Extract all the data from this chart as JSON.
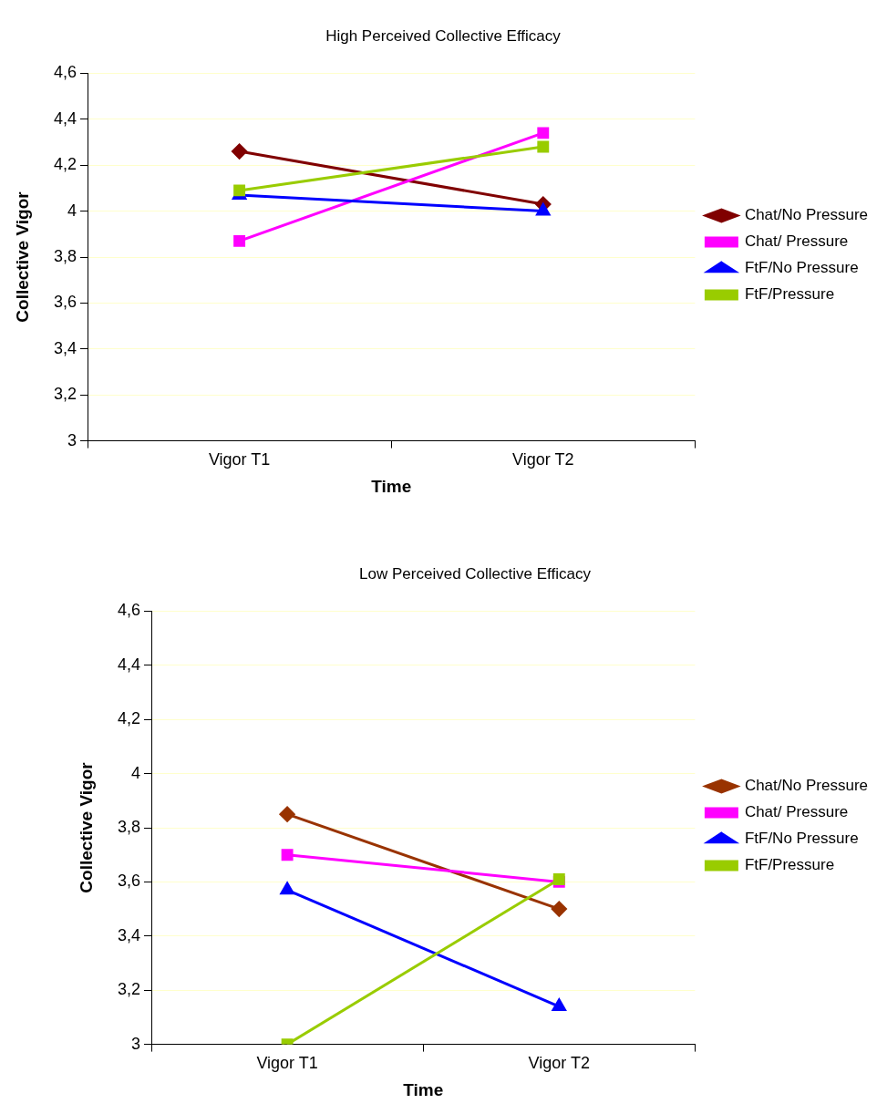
{
  "chart_data": [
    {
      "type": "line",
      "title": "High Perceived Collective Efficacy",
      "xlabel": "Time",
      "ylabel": "Collective Vigor",
      "categories": [
        "Vigor T1",
        "Vigor T2"
      ],
      "series": [
        {
          "name": "Chat/No Pressure",
          "color": "#800000",
          "marker": "diamond",
          "values": [
            4.26,
            4.03
          ]
        },
        {
          "name": "Chat/ Pressure",
          "color": "#ff00ff",
          "marker": "square",
          "values": [
            3.87,
            4.34
          ]
        },
        {
          "name": "FtF/No Pressure",
          "color": "#0000ff",
          "marker": "triangle",
          "values": [
            4.07,
            4.0
          ]
        },
        {
          "name": "FtF/Pressure",
          "color": "#99cc00",
          "marker": "square",
          "values": [
            4.09,
            4.28
          ]
        }
      ],
      "ylim": [
        3,
        4.6
      ],
      "yticks": [
        {
          "value": 3,
          "label": "3"
        },
        {
          "value": 3.2,
          "label": "3,2"
        },
        {
          "value": 3.4,
          "label": "3,4"
        },
        {
          "value": 3.6,
          "label": "3,6"
        },
        {
          "value": 3.8,
          "label": "3,8"
        },
        {
          "value": 4,
          "label": "4"
        },
        {
          "value": 4.2,
          "label": "4,2"
        },
        {
          "value": 4.4,
          "label": "4,4"
        },
        {
          "value": 4.6,
          "label": "4,6"
        }
      ],
      "grid": "y",
      "legend": "right"
    },
    {
      "type": "line",
      "title": "Low Perceived Collective Efficacy",
      "xlabel": "Time",
      "ylabel": "Collective Vigor",
      "categories": [
        "Vigor T1",
        "Vigor T2"
      ],
      "series": [
        {
          "name": "Chat/No Pressure",
          "color": "#993300",
          "marker": "diamond",
          "values": [
            3.85,
            3.5
          ]
        },
        {
          "name": "Chat/ Pressure",
          "color": "#ff00ff",
          "marker": "square",
          "values": [
            3.7,
            3.6
          ]
        },
        {
          "name": "FtF/No Pressure",
          "color": "#0000ff",
          "marker": "triangle",
          "values": [
            3.57,
            3.14
          ]
        },
        {
          "name": "FtF/Pressure",
          "color": "#99cc00",
          "marker": "square",
          "values": [
            3.0,
            3.61
          ]
        }
      ],
      "ylim": [
        3,
        4.6
      ],
      "yticks": [
        {
          "value": 3,
          "label": "3"
        },
        {
          "value": 3.2,
          "label": "3,2"
        },
        {
          "value": 3.4,
          "label": "3,4"
        },
        {
          "value": 3.6,
          "label": "3,6"
        },
        {
          "value": 3.8,
          "label": "3,8"
        },
        {
          "value": 4,
          "label": "4"
        },
        {
          "value": 4.2,
          "label": "4,2"
        },
        {
          "value": 4.4,
          "label": "4,4"
        },
        {
          "value": 4.6,
          "label": "4,6"
        }
      ],
      "grid": "y",
      "legend": "right"
    }
  ]
}
